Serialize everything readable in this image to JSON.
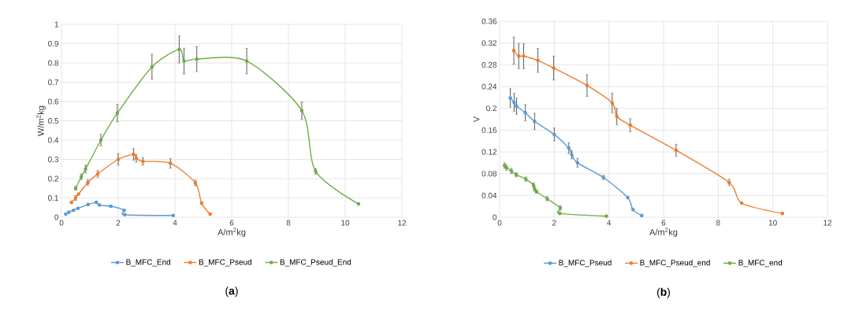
{
  "chart_data": [
    {
      "type": "line",
      "title": "(**a**)",
      "xlabel": "A/m$^{2}$kg",
      "ylabel": "W/m$^{2}$kg",
      "xlim": [
        0,
        12
      ],
      "xticks": [
        0,
        2,
        4,
        6,
        8,
        10,
        12
      ],
      "ylim": [
        0,
        1
      ],
      "yticks": [
        0,
        0.1,
        0.2,
        0.3,
        0.4,
        0.5,
        0.6,
        0.7,
        0.8,
        0.9,
        1
      ],
      "grid": true,
      "legend": "bottom",
      "marker": "circle",
      "line_style": "solid",
      "series": [
        {
          "name": "B_MFC_End",
          "color": "#5b9bd5",
          "x": [
            0.15,
            0.26,
            0.42,
            0.58,
            0.94,
            1.23,
            1.34,
            1.74,
            2.21,
            2.23,
            3.94
          ],
          "values": [
            0.016,
            0.026,
            0.036,
            0.046,
            0.066,
            0.077,
            0.063,
            0.057,
            0.036,
            0.013,
            0.009
          ]
        },
        {
          "name": "B_MFC_Pseud",
          "color": "#ed7d31",
          "x": [
            0.35,
            0.5,
            0.6,
            0.93,
            1.28,
            2.0,
            2.54,
            2.64,
            2.87,
            3.84,
            4.72,
            4.94,
            5.24
          ],
          "values": [
            0.077,
            0.1,
            0.12,
            0.18,
            0.225,
            0.3,
            0.326,
            0.305,
            0.29,
            0.28,
            0.178,
            0.073,
            0.016
          ],
          "errors": [
            null,
            0.013,
            null,
            0.015,
            0.018,
            0.03,
            0.03,
            0.02,
            0.02,
            0.025,
            0.015,
            null,
            null
          ]
        },
        {
          "name": "B_MFC_Pseud_End",
          "color": "#70ad47",
          "x": [
            0.5,
            0.7,
            0.85,
            1.39,
            1.97,
            3.19,
            4.15,
            4.32,
            4.77,
            6.53,
            8.47,
            8.96,
            10.47
          ],
          "values": [
            0.15,
            0.21,
            0.25,
            0.4,
            0.54,
            0.78,
            0.87,
            0.81,
            0.82,
            0.81,
            0.553,
            0.238,
            0.069
          ],
          "errors": [
            0.01,
            0.015,
            0.02,
            0.03,
            0.045,
            0.065,
            0.07,
            0.067,
            0.065,
            0.066,
            0.045,
            0.015,
            null
          ]
        }
      ]
    },
    {
      "type": "line",
      "title": "(**b**)",
      "xlabel": "A/m$^{2}$kg",
      "ylabel": "V",
      "xlim": [
        0,
        12
      ],
      "xticks": [
        0,
        2,
        4,
        6,
        8,
        10,
        12
      ],
      "ylim": [
        0,
        0.36
      ],
      "yticks": [
        0,
        0.04,
        0.08,
        0.12,
        0.16,
        0.2,
        0.24,
        0.28,
        0.32,
        0.36
      ],
      "grid": true,
      "legend": "bottom",
      "marker": "circle",
      "line_style": "solid",
      "series": [
        {
          "name": "B_MFC_Pseud",
          "color": "#5b9bd5",
          "x": [
            0.39,
            0.53,
            0.62,
            0.94,
            1.28,
            2.0,
            2.53,
            2.64,
            2.85,
            3.8,
            4.69,
            4.88,
            5.2
          ],
          "values": [
            0.219,
            0.211,
            0.204,
            0.192,
            0.176,
            0.152,
            0.127,
            0.115,
            0.1,
            0.073,
            0.036,
            0.014,
            0.003
          ],
          "errors": [
            0.017,
            0.017,
            0.015,
            0.015,
            0.015,
            0.012,
            0.01,
            0.008,
            0.008,
            0.004,
            null,
            null,
            null
          ]
        },
        {
          "name": "B_MFC_Pseud_end",
          "color": "#ed7d31",
          "x": [
            0.52,
            0.7,
            0.88,
            1.4,
            1.98,
            3.2,
            4.12,
            4.29,
            4.78,
            6.46,
            8.4,
            8.86,
            10.35
          ],
          "values": [
            0.306,
            0.296,
            0.296,
            0.288,
            0.274,
            0.242,
            0.21,
            0.185,
            0.169,
            0.123,
            0.064,
            0.026,
            0.007
          ],
          "errors": [
            0.025,
            0.023,
            0.023,
            0.022,
            0.022,
            0.02,
            0.018,
            0.015,
            0.012,
            0.011,
            0.006,
            null,
            null
          ]
        },
        {
          "name": "B_MFC_end",
          "color": "#70ad47",
          "x": [
            0.18,
            0.25,
            0.43,
            0.61,
            0.96,
            1.24,
            1.28,
            1.35,
            1.74,
            2.22,
            2.2,
            3.91
          ],
          "values": [
            0.095,
            0.091,
            0.085,
            0.078,
            0.07,
            0.059,
            0.052,
            0.047,
            0.034,
            0.017,
            0.007,
            0.002
          ],
          "errors": [
            0.005,
            0.005,
            0.005,
            0.004,
            0.004,
            0.004,
            0.004,
            0.003,
            0.004,
            0.004,
            null,
            null
          ]
        }
      ]
    }
  ]
}
